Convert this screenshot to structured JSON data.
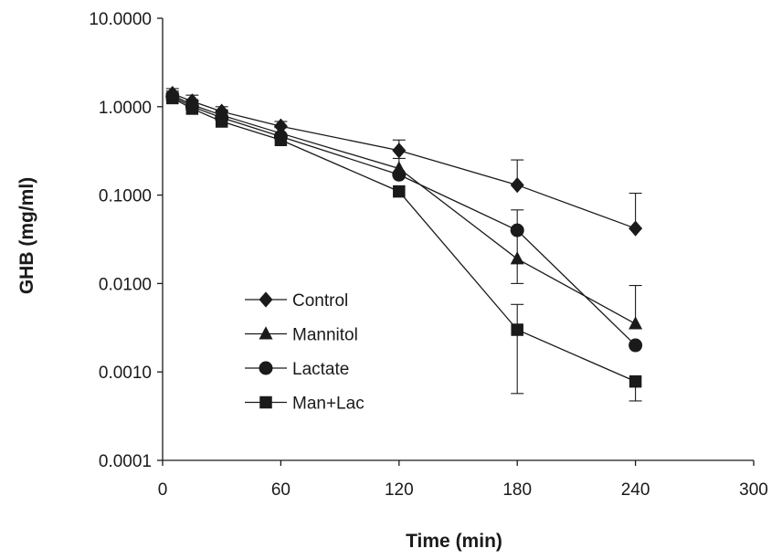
{
  "chart_data": {
    "type": "line",
    "title": "",
    "xlabel": "Time (min)",
    "ylabel": "GHB (mg/ml)",
    "xlim": [
      0,
      300
    ],
    "ylim": [
      0.0001,
      10
    ],
    "yscale": "log",
    "grid": false,
    "legend_position": "lower-left",
    "x_ticks": [
      0,
      60,
      120,
      180,
      240,
      300
    ],
    "x_tick_labels": [
      "0",
      "60",
      "120",
      "180",
      "240",
      "300"
    ],
    "y_ticks": [
      10,
      1,
      0.1,
      0.01,
      0.001,
      0.0001
    ],
    "y_tick_labels": [
      "10.0000",
      "1.0000",
      "0.1000",
      "0.0100",
      "0.0010",
      "0.0001"
    ],
    "series": [
      {
        "name": "Control",
        "marker": "diamond",
        "x": [
          5,
          15,
          30,
          60,
          120,
          180,
          240
        ],
        "y": [
          1.4,
          1.15,
          0.88,
          0.6,
          0.32,
          0.13,
          0.042
        ],
        "err_upper": [
          1.6,
          1.35,
          1.0,
          0.68,
          0.42,
          0.25,
          0.105
        ]
      },
      {
        "name": "Mannitol",
        "marker": "triangle",
        "x": [
          5,
          15,
          30,
          60,
          120,
          180,
          240
        ],
        "y": [
          1.35,
          1.05,
          0.8,
          0.5,
          0.2,
          0.019,
          0.0035
        ],
        "err_upper": [
          1.5,
          1.2,
          0.92,
          0.58,
          0.26,
          0.04,
          0.0095
        ],
        "err_lower": [
          null,
          null,
          null,
          null,
          null,
          0.01,
          null
        ]
      },
      {
        "name": "Lactate",
        "marker": "circle",
        "x": [
          5,
          15,
          30,
          60,
          120,
          180,
          240
        ],
        "y": [
          1.3,
          1.0,
          0.75,
          0.46,
          0.17,
          0.04,
          0.002
        ],
        "err_upper": [
          null,
          null,
          null,
          null,
          null,
          0.068,
          null
        ]
      },
      {
        "name": "Man+Lac",
        "marker": "square",
        "x": [
          5,
          15,
          30,
          60,
          120,
          180,
          240
        ],
        "y": [
          1.25,
          0.95,
          0.68,
          0.42,
          0.11,
          0.003,
          0.00078
        ],
        "err_upper": [
          null,
          null,
          null,
          null,
          null,
          0.0058,
          null
        ],
        "err_lower": [
          null,
          null,
          null,
          null,
          null,
          0.00057,
          0.00047
        ]
      }
    ]
  }
}
